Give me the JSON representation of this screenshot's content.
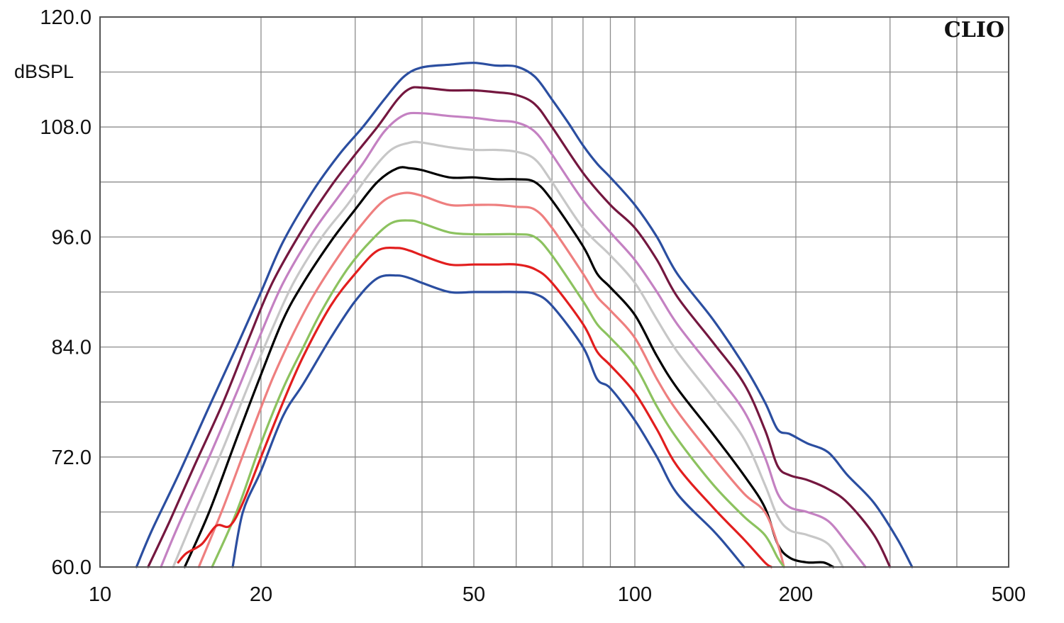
{
  "chart_data": {
    "type": "line",
    "title": "",
    "brand": "CLIO",
    "ylabel": "dBSPL",
    "xlabel": "",
    "x_scale": "log",
    "xlim": [
      10,
      500
    ],
    "ylim": [
      60,
      120
    ],
    "y_ticks": [
      "120.0",
      "108.0",
      "96.0",
      "84.0",
      "72.0",
      "60.0"
    ],
    "y_tick_values": [
      120,
      108,
      96,
      84,
      72,
      60
    ],
    "y_grid_step": 6,
    "x_ticks": [
      "10",
      "20",
      "50",
      "100",
      "200",
      "500"
    ],
    "x_tick_values": [
      10,
      20,
      50,
      100,
      200,
      500
    ],
    "x_grid": [
      20,
      30,
      40,
      50,
      60,
      70,
      80,
      90,
      100,
      200,
      300,
      400
    ],
    "grid": true,
    "legend": "none",
    "series": [
      {
        "color": "#2b4ea0",
        "x": [
          11.7,
          12.5,
          14,
          16,
          18,
          20,
          22,
          25,
          28,
          31,
          34,
          37,
          40,
          45,
          50,
          55,
          60,
          65,
          70,
          75,
          80,
          85,
          90,
          100,
          110,
          120,
          140,
          160,
          175,
          185,
          195,
          210,
          230,
          250,
          280,
          310,
          330
        ],
        "y": [
          60,
          64,
          70,
          77.5,
          84,
          90,
          95.5,
          101,
          105,
          108,
          111,
          113.5,
          114.5,
          114.8,
          115,
          114.7,
          114.6,
          113.5,
          111,
          108.5,
          106,
          104,
          102.5,
          99.5,
          96,
          92,
          87,
          82,
          78,
          75,
          74.5,
          73.5,
          72.5,
          70,
          67,
          63,
          60
        ]
      },
      {
        "color": "#74173f",
        "x": [
          12.3,
          13.5,
          15,
          17,
          19,
          21,
          24,
          27,
          30,
          33,
          36,
          38,
          40,
          45,
          50,
          55,
          60,
          65,
          70,
          80,
          90,
          100,
          110,
          120,
          140,
          160,
          175,
          185,
          195,
          210,
          230,
          250,
          280,
          300
        ],
        "y": [
          60,
          65,
          71,
          78,
          85,
          91,
          97,
          101.5,
          105,
          108,
          111,
          112.2,
          112.3,
          112,
          112,
          111.8,
          111.5,
          110.5,
          108,
          103,
          99.5,
          97,
          93.5,
          89.5,
          84.5,
          80,
          75,
          71,
          70,
          69.5,
          68.5,
          67,
          63.5,
          60
        ]
      },
      {
        "color": "#c481c2",
        "x": [
          13,
          14,
          16,
          18,
          20,
          22,
          25,
          28,
          31,
          34,
          37,
          40,
          45,
          50,
          55,
          60,
          65,
          70,
          80,
          90,
          100,
          110,
          120,
          140,
          160,
          175,
          185,
          195,
          210,
          230,
          250,
          270
        ],
        "y": [
          60,
          64.5,
          72,
          79,
          85.5,
          91,
          96.5,
          100.5,
          104,
          107.5,
          109.3,
          109.5,
          109.2,
          109,
          108.7,
          108.5,
          107.5,
          105,
          100,
          96.5,
          93.5,
          90,
          86.5,
          81.5,
          77,
          72,
          68,
          66.5,
          66,
          65,
          62.5,
          60
        ]
      },
      {
        "color": "#c7c7c7",
        "x": [
          13.7,
          15,
          17,
          19,
          21,
          23,
          26,
          29,
          32,
          35,
          38,
          40,
          45,
          50,
          55,
          60,
          65,
          70,
          80,
          90,
          100,
          110,
          120,
          140,
          160,
          175,
          185,
          195,
          210,
          230,
          245
        ],
        "y": [
          60,
          65.5,
          73,
          80,
          86,
          91,
          96,
          99.5,
          103,
          105.5,
          106.3,
          106.3,
          105.8,
          105.5,
          105.5,
          105.3,
          104.5,
          102,
          97,
          94,
          91,
          87,
          83.5,
          78.5,
          74,
          69,
          65.5,
          64,
          63.5,
          62.5,
          60
        ]
      },
      {
        "color": "#000000",
        "x": [
          14.4,
          16,
          18,
          20,
          22,
          24,
          27,
          30,
          33,
          36,
          38,
          40,
          45,
          50,
          55,
          60,
          65,
          70,
          80,
          85,
          90,
          100,
          110,
          120,
          140,
          160,
          175,
          185,
          195,
          210,
          225,
          235
        ],
        "y": [
          60,
          66,
          74,
          81,
          87,
          91,
          95.5,
          99,
          102,
          103.5,
          103.5,
          103.3,
          102.5,
          102.5,
          102.3,
          102.3,
          102,
          100,
          95,
          92,
          90.5,
          87.5,
          83,
          79.5,
          74.5,
          70,
          66.5,
          62.5,
          61,
          60.5,
          60.5,
          60
        ]
      },
      {
        "color": "#ee7f7f",
        "x": [
          15.3,
          17,
          19,
          21,
          23,
          25,
          28,
          31,
          34,
          37,
          40,
          45,
          50,
          55,
          60,
          65,
          70,
          80,
          85,
          90,
          100,
          110,
          120,
          140,
          160,
          175,
          185,
          190
        ],
        "y": [
          60,
          66.5,
          74,
          80.5,
          85.5,
          89.5,
          94,
          97.5,
          100,
          100.8,
          100.5,
          99.5,
          99.5,
          99.5,
          99.3,
          99,
          97,
          92,
          89.5,
          88,
          85,
          80.5,
          77,
          72,
          68,
          66,
          62.5,
          60
        ]
      },
      {
        "color": "#8cc25f",
        "x": [
          16.2,
          18,
          20,
          22,
          24,
          26,
          29,
          32,
          35,
          38,
          40,
          45,
          50,
          55,
          60,
          65,
          70,
          80,
          85,
          90,
          100,
          110,
          120,
          140,
          160,
          175,
          185,
          190
        ],
        "y": [
          60,
          66,
          73.5,
          79.5,
          84,
          88,
          92.5,
          95.5,
          97.5,
          97.8,
          97.5,
          96.5,
          96.3,
          96.3,
          96.3,
          96,
          94,
          89,
          86.5,
          85,
          82,
          77.5,
          74,
          69,
          65.5,
          63.5,
          61,
          60
        ]
      },
      {
        "color": "#e21e1e",
        "x": [
          14.0,
          14.5,
          15.5,
          16.5,
          17.5,
          18.5,
          20,
          22,
          24,
          27,
          30,
          33,
          36,
          38,
          40,
          45,
          50,
          55,
          60,
          65,
          70,
          80,
          85,
          90,
          100,
          110,
          120,
          140,
          160,
          175,
          180
        ],
        "y": [
          60.5,
          61.5,
          62.5,
          64.5,
          64.5,
          67,
          72,
          78,
          83,
          88.5,
          92,
          94.5,
          94.8,
          94.5,
          94,
          93,
          93,
          93,
          93,
          92.5,
          91,
          86.5,
          83.5,
          82,
          79,
          75,
          71,
          66.5,
          63,
          60.5,
          60
        ]
      },
      {
        "color": "#2b4ea0",
        "x": [
          17.7,
          18.5,
          20,
          22,
          24,
          27,
          30,
          33,
          36,
          38,
          40,
          45,
          50,
          55,
          60,
          65,
          70,
          80,
          85,
          90,
          100,
          110,
          120,
          140,
          150,
          160
        ],
        "y": [
          60,
          66,
          70.5,
          76.5,
          80,
          85,
          89,
          91.5,
          91.8,
          91.5,
          91,
          90,
          90,
          90,
          90,
          89.8,
          88.5,
          84,
          80.5,
          79.5,
          76,
          72,
          68,
          64,
          62,
          60
        ]
      }
    ]
  }
}
